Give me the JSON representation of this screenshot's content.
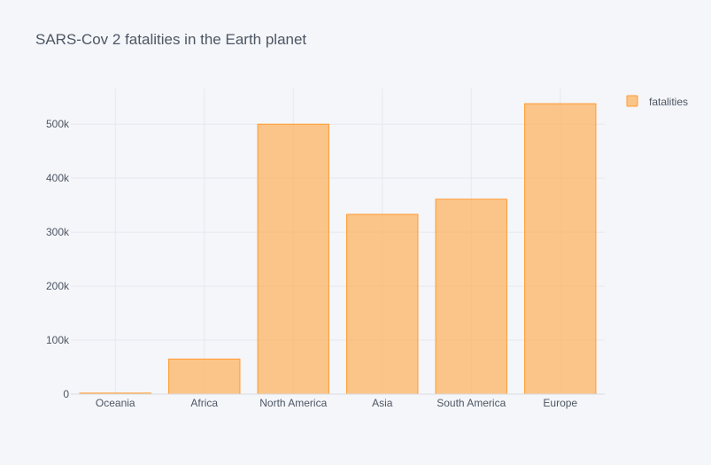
{
  "chart_data": {
    "type": "bar",
    "title": "SARS-Cov 2 fatalities in the Earth planet",
    "xlabel": "",
    "ylabel": "",
    "categories": [
      "Oceania",
      "Africa",
      "North America",
      "Asia",
      "South America",
      "Europe"
    ],
    "series": [
      {
        "name": "fatalities",
        "values": [
          1900,
          65000,
          500000,
          333000,
          361000,
          538000
        ]
      }
    ],
    "ylim": [
      0,
      566000
    ],
    "y_ticks": [
      0,
      100000,
      200000,
      300000,
      400000,
      500000
    ],
    "y_tick_labels": [
      "0",
      "100k",
      "200k",
      "300k",
      "400k",
      "500k"
    ],
    "grid": true,
    "legend_position": "top-right",
    "colors": {
      "background": "#f5f6fa",
      "grid": "#e6e8ee",
      "bar_fill": "#ffa53f",
      "bar_stroke": "#ff9b2f",
      "text": "#4d5663"
    }
  }
}
